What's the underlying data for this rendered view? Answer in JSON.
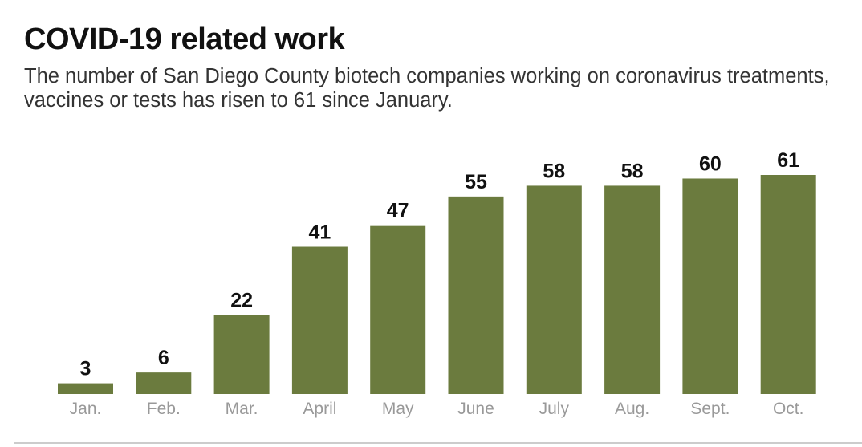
{
  "title": "COVID-19 related work",
  "subtitle": "The number of San Diego County biotech companies working on coronavirus treatments, vaccines or tests has risen to 61 since January.",
  "chart_data": {
    "type": "bar",
    "title": "COVID-19 related work",
    "subtitle": "The number of San Diego County biotech companies working on coronavirus treatments, vaccines or tests has risen to 61 since January.",
    "categories": [
      "Jan.",
      "Feb.",
      "Mar.",
      "April",
      "May",
      "June",
      "July",
      "Aug.",
      "Sept.",
      "Oct."
    ],
    "values": [
      3,
      6,
      22,
      41,
      47,
      55,
      58,
      58,
      60,
      61
    ],
    "ylim": [
      0,
      61
    ],
    "grid": false,
    "data_labels": true,
    "bar_color": "#6b7b3e"
  }
}
